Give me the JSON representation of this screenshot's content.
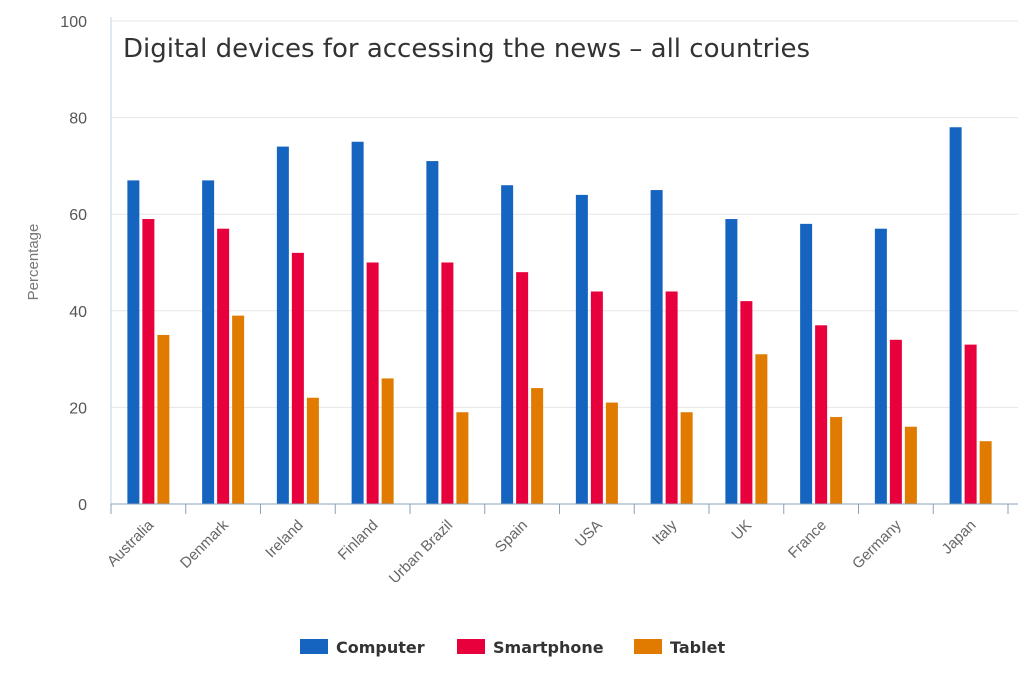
{
  "chart_data": {
    "type": "bar",
    "title": "Digital devices for accessing the news – all countries",
    "xlabel": "",
    "ylabel": "Percentage",
    "ylim": [
      0,
      100
    ],
    "yticks": [
      0,
      20,
      40,
      60,
      80,
      100
    ],
    "grid": true,
    "legend_position": "bottom-center",
    "categories": [
      "Australia",
      "Denmark",
      "Ireland",
      "Finland",
      "Urban Brazil",
      "Spain",
      "USA",
      "Italy",
      "UK",
      "France",
      "Germany",
      "Japan"
    ],
    "series": [
      {
        "name": "Computer",
        "color": "#1565c0",
        "values": [
          67,
          67,
          74,
          75,
          71,
          66,
          64,
          65,
          59,
          58,
          57,
          78
        ]
      },
      {
        "name": "Smartphone",
        "color": "#e8003d",
        "values": [
          59,
          57,
          52,
          50,
          50,
          48,
          44,
          44,
          42,
          37,
          34,
          33
        ]
      },
      {
        "name": "Tablet",
        "color": "#e07b00",
        "values": [
          35,
          39,
          22,
          26,
          19,
          24,
          21,
          19,
          31,
          18,
          16,
          13
        ]
      }
    ]
  }
}
